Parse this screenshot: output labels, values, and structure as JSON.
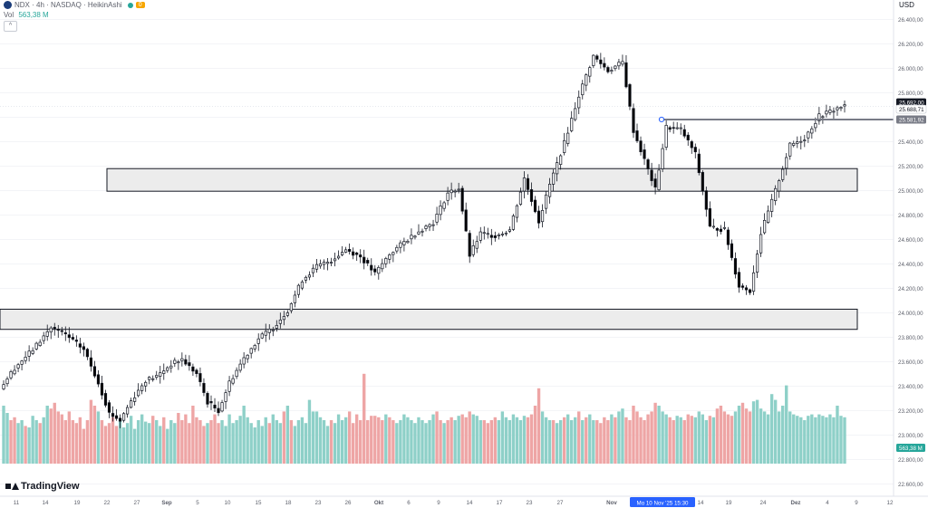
{
  "header": {
    "symbol_line": "NDX · 4h · NASDAQ · HeikinAshi",
    "alerts_badge": "0",
    "vol_label": "Vol",
    "vol_value": "563,38 M",
    "collapse_glyph": "^"
  },
  "currency_label": "USD",
  "logo_text": "TradingView",
  "colors": {
    "up_body": "#ffffff",
    "down_body": "#000000",
    "vol_up": "#8ed0c8",
    "vol_down": "#eea5a5",
    "accent_green": "#26a69a",
    "zone_fill": "#ececec"
  },
  "chart_data": {
    "type": "candlestick",
    "x_axis_labels": [
      "11",
      "14",
      "19",
      "22",
      "27",
      "Sep",
      "5",
      "10",
      "15",
      "18",
      "23",
      "26",
      "Okt",
      "6",
      "9",
      "14",
      "17",
      "23",
      "27",
      "Nov",
      "Mo 10 Nov '25",
      "15:30",
      "14",
      "19",
      "24",
      "Dez",
      "4",
      "9",
      "12"
    ],
    "highlighted_time_label": "Mo 10 Nov '25   15:30",
    "y_ticks": [
      22600,
      22800,
      23000,
      23200,
      23400,
      23600,
      23800,
      24000,
      24200,
      24400,
      24600,
      24800,
      25000,
      25200,
      25400,
      25600,
      25800,
      26000,
      26200,
      26400
    ],
    "y_tick_labels": [
      "22.600,00",
      "22.800,00",
      "23.000,00",
      "23.200,00",
      "23.400,00",
      "23.600,00",
      "23.800,00",
      "24.000,00",
      "24.200,00",
      "24.400,00",
      "24.600,00",
      "24.800,00",
      "25.000,00",
      "25.200,00",
      "25.400,00",
      "25.600,00",
      "25.800,00",
      "26.000,00",
      "26.200,00",
      "26.400,00"
    ],
    "ylim": [
      22500,
      26500
    ],
    "price_labels": [
      {
        "text": "25.692,00",
        "value": 25692,
        "style": "dark"
      },
      {
        "text": "25.688,71",
        "value": 25688.71,
        "style": "light"
      },
      {
        "text": "25.581,92",
        "value": 25581.92,
        "style": "gray"
      }
    ],
    "vol_axis_label": "563,38 M",
    "horizontal_line": {
      "value": 25581.92
    },
    "zones": [
      {
        "low": 24995,
        "high": 25180
      },
      {
        "low": 23865,
        "high": 24030
      }
    ],
    "candle_count": 232,
    "series": [
      {
        "name": "price",
        "points": [
          [
            0,
            23380
          ],
          [
            4,
            23550
          ],
          [
            9,
            23700
          ],
          [
            14,
            23880
          ],
          [
            18,
            23820
          ],
          [
            23,
            23700
          ],
          [
            27,
            23430
          ],
          [
            30,
            23180
          ],
          [
            33,
            23120
          ],
          [
            36,
            23280
          ],
          [
            40,
            23450
          ],
          [
            43,
            23480
          ],
          [
            47,
            23580
          ],
          [
            50,
            23620
          ],
          [
            54,
            23500
          ],
          [
            57,
            23270
          ],
          [
            60,
            23200
          ],
          [
            63,
            23430
          ],
          [
            67,
            23630
          ],
          [
            71,
            23790
          ],
          [
            75,
            23880
          ],
          [
            79,
            24020
          ],
          [
            83,
            24270
          ],
          [
            87,
            24380
          ],
          [
            91,
            24430
          ],
          [
            95,
            24520
          ],
          [
            99,
            24460
          ],
          [
            103,
            24320
          ],
          [
            107,
            24480
          ],
          [
            111,
            24580
          ],
          [
            115,
            24670
          ],
          [
            119,
            24740
          ],
          [
            123,
            24980
          ],
          [
            126,
            25020
          ],
          [
            129,
            24470
          ],
          [
            132,
            24650
          ],
          [
            136,
            24630
          ],
          [
            140,
            24680
          ],
          [
            144,
            25100
          ],
          [
            148,
            24750
          ],
          [
            151,
            25050
          ],
          [
            155,
            25390
          ],
          [
            159,
            25780
          ],
          [
            163,
            26100
          ],
          [
            167,
            25980
          ],
          [
            171,
            26050
          ],
          [
            174,
            25490
          ],
          [
            177,
            25250
          ],
          [
            180,
            25010
          ],
          [
            183,
            25520
          ],
          [
            187,
            25500
          ],
          [
            191,
            25300
          ],
          [
            195,
            24700
          ],
          [
            199,
            24680
          ],
          [
            203,
            24220
          ],
          [
            206,
            24180
          ],
          [
            209,
            24650
          ],
          [
            213,
            25000
          ],
          [
            217,
            25370
          ],
          [
            221,
            25430
          ],
          [
            225,
            25610
          ],
          [
            229,
            25660
          ],
          [
            231,
            25688
          ]
        ]
      },
      {
        "name": "volume",
        "values": [
          0.4,
          0.35,
          0.3,
          0.32,
          0.28,
          0.3,
          0.26,
          0.25,
          0.33,
          0.3,
          0.28,
          0.32,
          0.4,
          0.38,
          0.42,
          0.36,
          0.34,
          0.3,
          0.36,
          0.3,
          0.28,
          0.32,
          0.24,
          0.3,
          0.44,
          0.4,
          0.36,
          0.3,
          0.26,
          0.28,
          0.32,
          0.26,
          0.3,
          0.25,
          0.28,
          0.33,
          0.24,
          0.3,
          0.34,
          0.29,
          0.28,
          0.33,
          0.3,
          0.26,
          0.32,
          0.24,
          0.3,
          0.28,
          0.35,
          0.3,
          0.34,
          0.28,
          0.4,
          0.32,
          0.3,
          0.26,
          0.28,
          0.3,
          0.34,
          0.28,
          0.3,
          0.26,
          0.34,
          0.28,
          0.3,
          0.33,
          0.4,
          0.32,
          0.28,
          0.25,
          0.3,
          0.26,
          0.32,
          0.28,
          0.34,
          0.3,
          0.28,
          0.36,
          0.4,
          0.3,
          0.26,
          0.3,
          0.32,
          0.28,
          0.44,
          0.36,
          0.36,
          0.32,
          0.3,
          0.26,
          0.3,
          0.28,
          0.34,
          0.3,
          0.32,
          0.36,
          0.28,
          0.34,
          0.3,
          0.62,
          0.3,
          0.33,
          0.33,
          0.32,
          0.3,
          0.34,
          0.32,
          0.3,
          0.28,
          0.3,
          0.34,
          0.32,
          0.3,
          0.28,
          0.32,
          0.3,
          0.28,
          0.3,
          0.34,
          0.36,
          0.3,
          0.28,
          0.3,
          0.32,
          0.3,
          0.33,
          0.34,
          0.32,
          0.36,
          0.34,
          0.33,
          0.3,
          0.3,
          0.28,
          0.3,
          0.32,
          0.3,
          0.36,
          0.32,
          0.3,
          0.34,
          0.32,
          0.3,
          0.33,
          0.32,
          0.34,
          0.4,
          0.52,
          0.36,
          0.32,
          0.3,
          0.3,
          0.28,
          0.3,
          0.32,
          0.34,
          0.3,
          0.32,
          0.36,
          0.3,
          0.32,
          0.34,
          0.3,
          0.3,
          0.28,
          0.32,
          0.3,
          0.34,
          0.32,
          0.36,
          0.38,
          0.32,
          0.3,
          0.4,
          0.36,
          0.32,
          0.3,
          0.34,
          0.36,
          0.42,
          0.4,
          0.36,
          0.34,
          0.32,
          0.3,
          0.33,
          0.32,
          0.3,
          0.34,
          0.33,
          0.32,
          0.36,
          0.34,
          0.3,
          0.33,
          0.32,
          0.38,
          0.4,
          0.36,
          0.34,
          0.33,
          0.36,
          0.4,
          0.42,
          0.38,
          0.36,
          0.43,
          0.44,
          0.38,
          0.36,
          0.34,
          0.48,
          0.44,
          0.36,
          0.4,
          0.54,
          0.36,
          0.34,
          0.33,
          0.32,
          0.3,
          0.33,
          0.34,
          0.32,
          0.34,
          0.33,
          0.32,
          0.34,
          0.32,
          0.4,
          0.33,
          0.32
        ]
      }
    ],
    "volume_color_pattern": [
      "d",
      "d",
      "d",
      "u",
      "u",
      "d",
      "d",
      "u",
      "u",
      "d",
      "u",
      "d",
      "d",
      "d",
      "d",
      "d",
      "d",
      "u",
      "d",
      "d",
      "d",
      "d",
      "d",
      "u",
      "u",
      "u",
      "u",
      "u",
      "u",
      "d"
    ]
  }
}
